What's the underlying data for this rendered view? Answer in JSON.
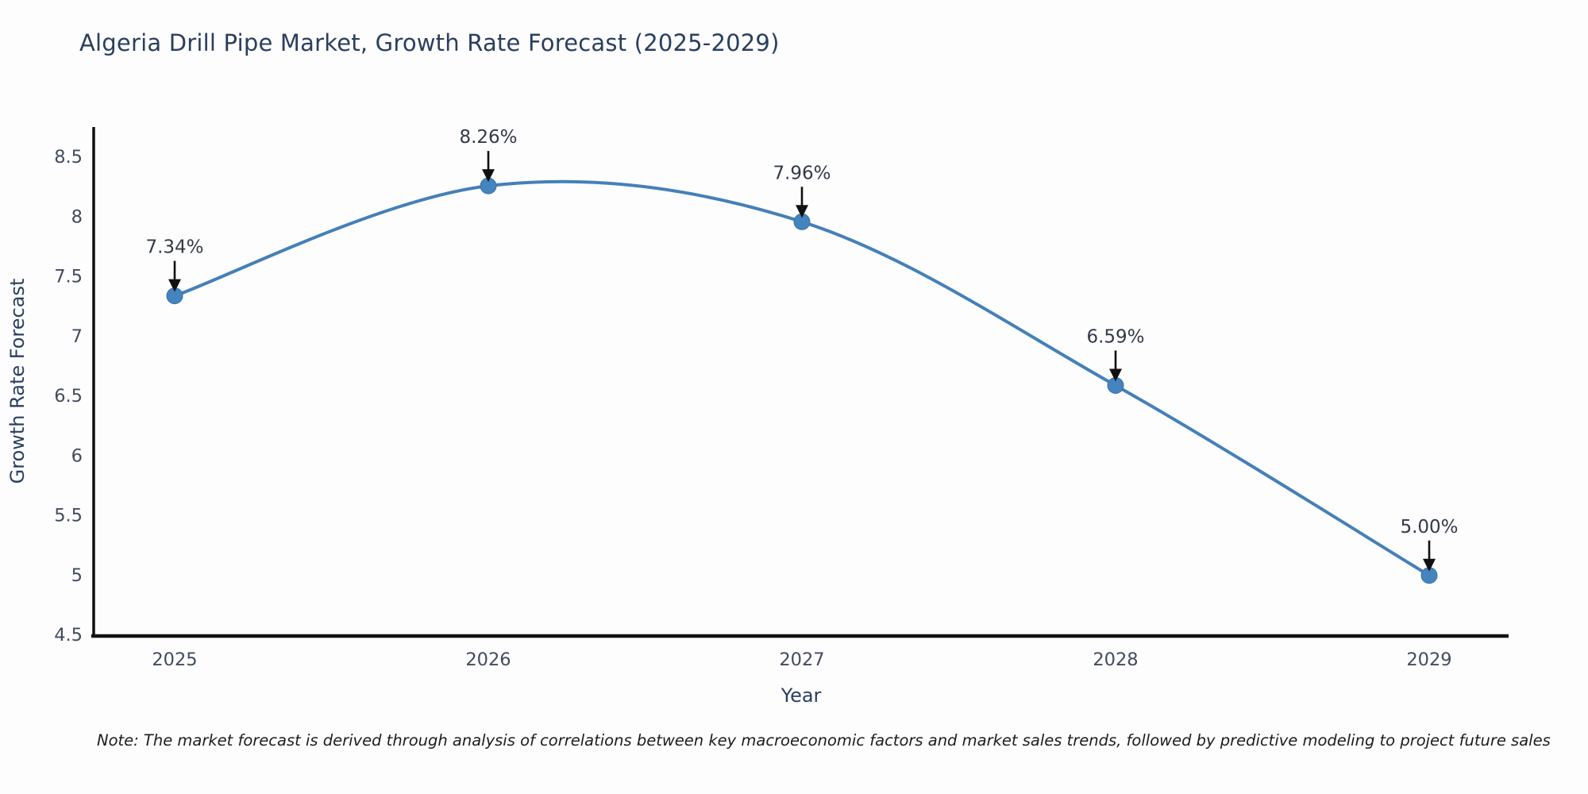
{
  "title": "Algeria Drill Pipe Market, Growth Rate Forecast (2025-2029)",
  "note": "Note: The market forecast is derived through analysis of correlations between key macroeconomic factors and market sales trends, followed by predictive modeling to project future sales",
  "colors": {
    "line": "#4580b8",
    "marker_fill": "#4484bf",
    "marker_stroke": "#3a72a6",
    "axis": "#111111",
    "title_text": "#2a3f5f",
    "tick_text": "#424c5e",
    "annotation_text": "#333a46",
    "arrow": "#111111",
    "background": "#fdfdfe"
  },
  "chart_data": {
    "type": "line",
    "line_style": "spline",
    "markers": true,
    "grid": false,
    "legend": "none",
    "title": "Algeria Drill Pipe Market, Growth Rate Forecast (2025-2029)",
    "xlabel": "Year",
    "ylabel": "Growth Rate Forecast",
    "x": [
      2025,
      2026,
      2027,
      2028,
      2029
    ],
    "values": [
      7.34,
      8.26,
      7.96,
      6.59,
      5.0
    ],
    "point_labels": [
      "7.34%",
      "8.26%",
      "7.96%",
      "6.59%",
      "5.00%"
    ],
    "ylim": [
      4.5,
      8.5
    ],
    "ytick_step": 0.5,
    "ytick_labels": [
      "4.5",
      "5",
      "5.5",
      "6",
      "6.5",
      "7",
      "7.5",
      "8",
      "8.5"
    ],
    "xtick_labels": [
      "2025",
      "2026",
      "2027",
      "2028",
      "2029"
    ]
  }
}
